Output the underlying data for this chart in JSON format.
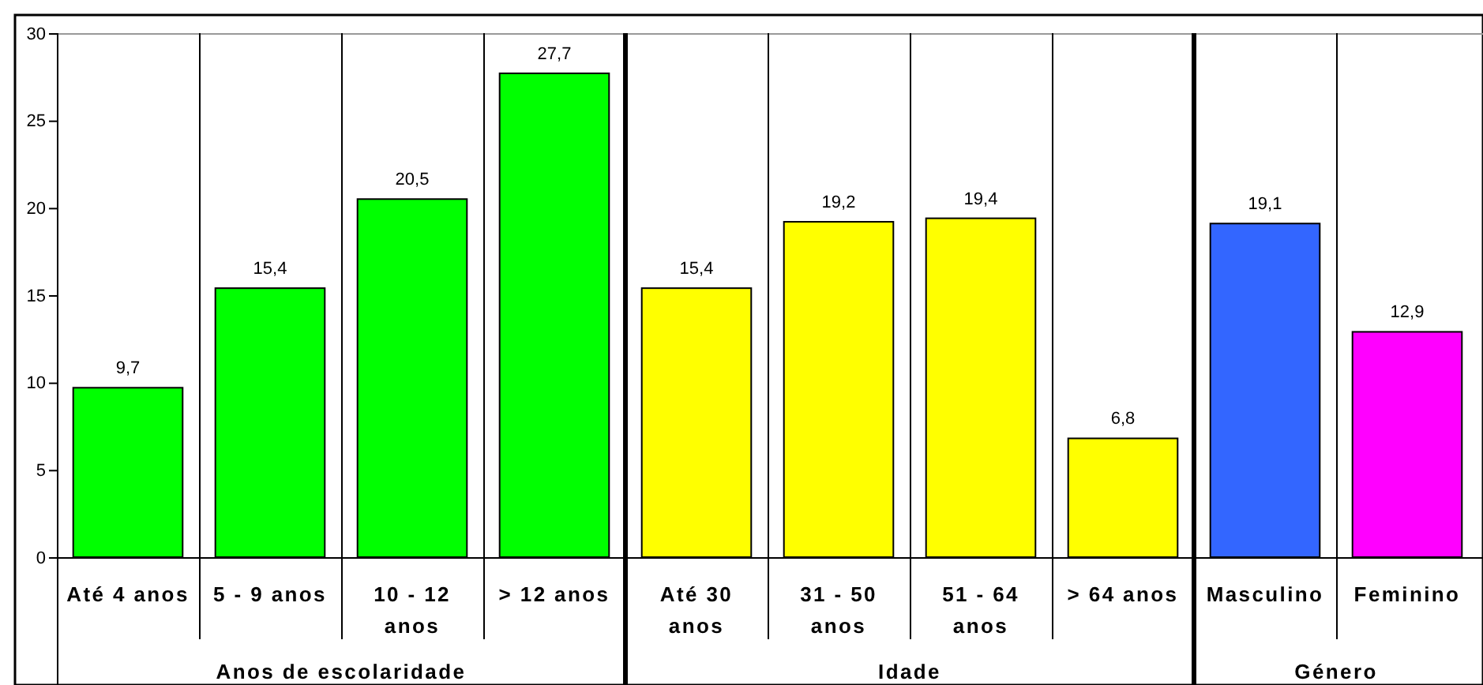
{
  "chart_data": {
    "type": "bar",
    "categories": [
      "Até 4 anos",
      "5 - 9 anos",
      "10 - 12 anos",
      "> 12 anos",
      "Até 30 anos",
      "31 - 50 anos",
      "51 - 64 anos",
      "> 64 anos",
      "Masculino",
      "Feminino"
    ],
    "series": [
      {
        "color": "#00ff00",
        "values": [
          9.7,
          15.4,
          20.5,
          27.7,
          null,
          null,
          null,
          null,
          null,
          null
        ],
        "value_labels": [
          "9,7",
          "15,4",
          "20,5",
          "27,7",
          null,
          null,
          null,
          null,
          null,
          null
        ]
      },
      {
        "color": "#ffff00",
        "values": [
          null,
          null,
          null,
          null,
          15.4,
          19.2,
          19.4,
          6.8,
          null,
          null
        ],
        "value_labels": [
          null,
          null,
          null,
          null,
          "15,4",
          "19,2",
          "19,4",
          "6,8",
          null,
          null
        ]
      },
      {
        "colors": [
          null,
          null,
          null,
          null,
          null,
          null,
          null,
          null,
          "#3366ff",
          "#ff00ff"
        ],
        "values": [
          null,
          null,
          null,
          null,
          null,
          null,
          null,
          null,
          19.1,
          12.9
        ],
        "value_labels": [
          null,
          null,
          null,
          null,
          null,
          null,
          null,
          null,
          "19,1",
          "12,9"
        ]
      }
    ],
    "annotations": [
      "Anos de escolaridade",
      "Idade",
      "Género"
    ],
    "stacked": true,
    "ylim": [
      0,
      30
    ],
    "yticks": [
      0,
      5,
      10,
      15,
      20,
      25,
      30
    ],
    "grid": "x"
  }
}
